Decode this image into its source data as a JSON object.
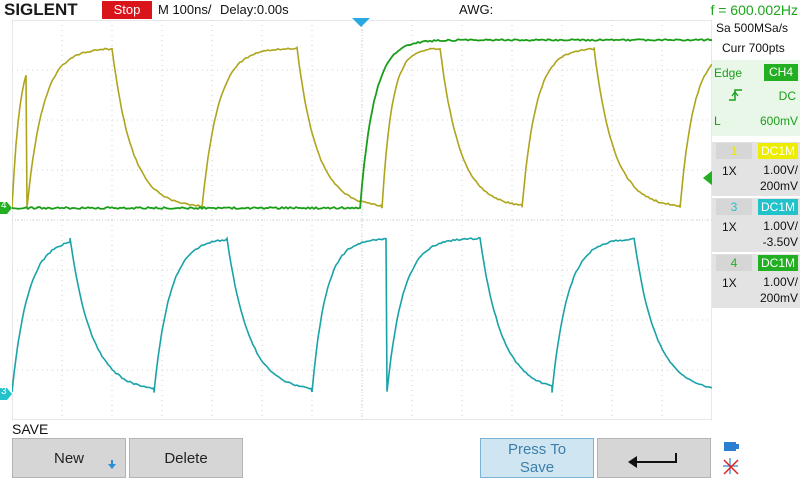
{
  "top": {
    "brand": "SIGLENT",
    "run_state": "Stop",
    "timebase": "M 100ns/",
    "delay": "Delay:0.00s",
    "awg": "AWG:",
    "frequency": "f = 600.002Hz"
  },
  "acquisition": {
    "sample_rate": "Sa 500MSa/s",
    "memory_depth": "Curr 700pts"
  },
  "trigger": {
    "type": "Edge",
    "source": "CH4",
    "slope_icon": "rising-edge-icon",
    "coupling": "DC",
    "level_label": "L",
    "level": "600mV"
  },
  "channels": [
    {
      "number": "1",
      "coupling": "DC1M",
      "probe": "1X",
      "scale": "1.00V/",
      "offset": "200mV",
      "color": "#c8c800"
    },
    {
      "number": "3",
      "coupling": "DC1M",
      "probe": "1X",
      "scale": "1.00V/",
      "offset": "-3.50V",
      "color": "#21c2c9"
    },
    {
      "number": "4",
      "coupling": "DC1M",
      "probe": "1X",
      "scale": "1.00V/",
      "offset": "200mV",
      "color": "#22b022"
    }
  ],
  "markers": {
    "ch4_ground": "4",
    "ch3_ground": "3"
  },
  "menu": {
    "title": "SAVE",
    "new_label": "New",
    "delete_label": "Delete",
    "press_to_save_line1": "Press To",
    "press_to_save_line2": "Save"
  },
  "colors": {
    "ch1_trace": "#aea51c",
    "ch3_trace": "#19a3a8",
    "ch4_trace": "#1a9e1a",
    "grid": "#d2d2d2",
    "stop_red": "#d9151b",
    "trigger_marker": "#2aa8e0"
  }
}
